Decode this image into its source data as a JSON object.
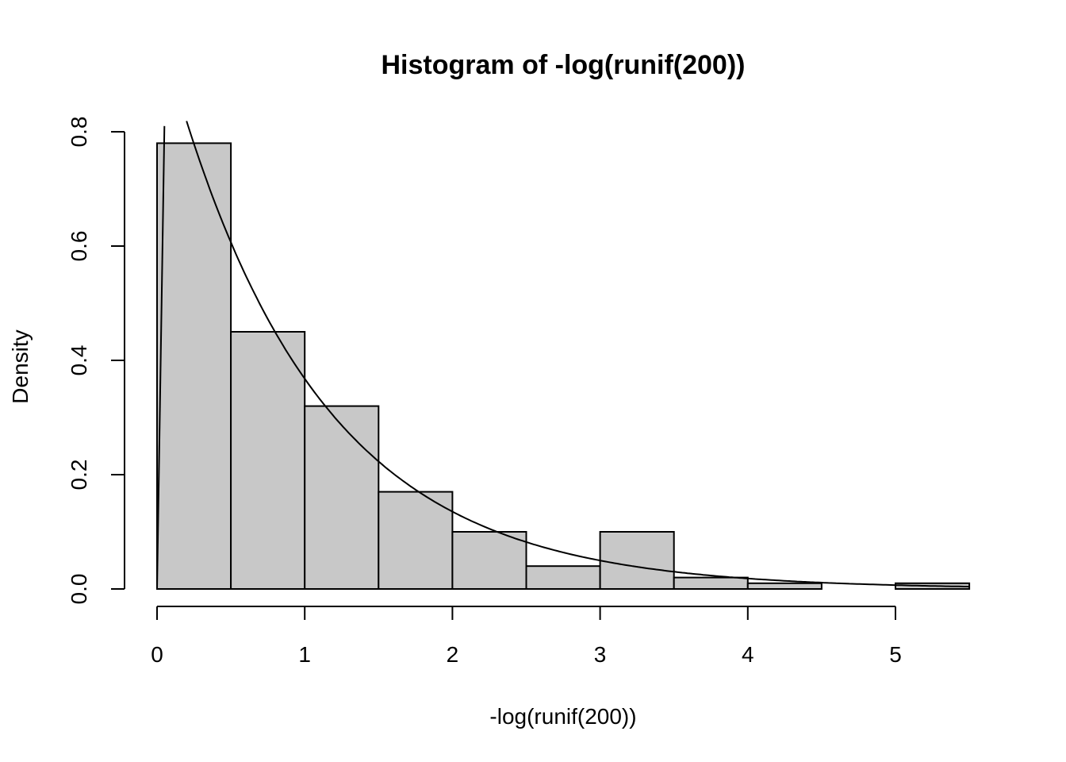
{
  "chart_data": {
    "type": "bar",
    "title": "Histogram of -log(runif(200))",
    "xlabel": "-log(runif(200))",
    "ylabel": "Density",
    "xlim": [
      0,
      5.5
    ],
    "ylim": [
      0,
      0.8
    ],
    "xticks": [
      0,
      1,
      2,
      3,
      4,
      5
    ],
    "xtick_labels": [
      "0",
      "1",
      "2",
      "3",
      "4",
      "5"
    ],
    "yticks": [
      0,
      0.2,
      0.4,
      0.6,
      0.8
    ],
    "ytick_labels": [
      "0.0",
      "0.2",
      "0.4",
      "0.6",
      "0.8"
    ],
    "bin_edges": [
      0,
      0.5,
      1,
      1.5,
      2,
      2.5,
      3,
      3.5,
      4,
      4.5,
      5,
      5.5
    ],
    "values": [
      0.78,
      0.45,
      0.32,
      0.17,
      0.1,
      0.04,
      0.1,
      0.02,
      0.01,
      0.0,
      0.01
    ],
    "overlays": [
      {
        "kind": "density-curve",
        "function": "exp(-x)",
        "x_range": [
          0.2,
          5.5
        ]
      },
      {
        "kind": "line",
        "x": [
          0.0,
          0.05
        ],
        "y": [
          0.0,
          0.81
        ]
      }
    ],
    "bar_fill": "#c8c8c8",
    "grid": false
  }
}
